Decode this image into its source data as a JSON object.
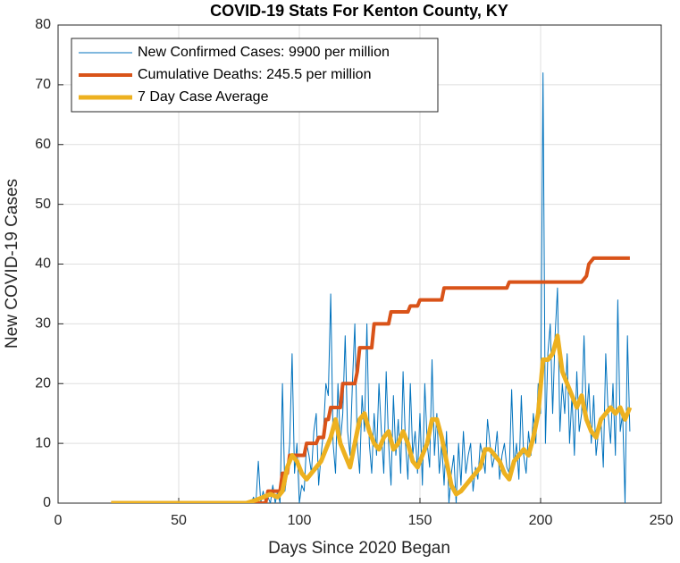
{
  "chart_data": {
    "type": "line",
    "title": "COVID-19 Stats For Kenton County, KY",
    "x_label": "Days Since 2020 Began",
    "y_label": "New COVID-19 Cases",
    "xlim": [
      0,
      250
    ],
    "xticks": [
      0,
      50,
      100,
      150,
      200,
      250
    ],
    "ylim": [
      0,
      80
    ],
    "yticks": [
      0,
      10,
      20,
      30,
      40,
      50,
      60,
      70,
      80
    ],
    "grid": true,
    "legend": "upper left",
    "series": [
      {
        "name": "New Confirmed Cases: 9900 per million",
        "color": "#0072bd",
        "width": 1,
        "x": [
          22,
          78,
          79,
          80,
          81,
          82,
          83,
          84,
          85,
          86,
          87,
          88,
          89,
          90,
          91,
          92,
          93,
          94,
          95,
          96,
          97,
          98,
          99,
          100,
          101,
          102,
          103,
          104,
          105,
          106,
          107,
          108,
          109,
          110,
          111,
          112,
          113,
          114,
          115,
          116,
          117,
          118,
          119,
          120,
          121,
          122,
          123,
          124,
          125,
          126,
          127,
          128,
          129,
          130,
          131,
          132,
          133,
          134,
          135,
          136,
          137,
          138,
          139,
          140,
          141,
          142,
          143,
          144,
          145,
          146,
          147,
          148,
          149,
          150,
          151,
          152,
          153,
          154,
          155,
          156,
          157,
          158,
          159,
          160,
          161,
          162,
          163,
          164,
          165,
          166,
          167,
          168,
          169,
          170,
          171,
          172,
          173,
          174,
          175,
          176,
          177,
          178,
          179,
          180,
          181,
          182,
          183,
          184,
          185,
          186,
          187,
          188,
          189,
          190,
          191,
          192,
          193,
          194,
          195,
          196,
          197,
          198,
          199,
          200,
          201,
          202,
          203,
          204,
          205,
          206,
          207,
          208,
          209,
          210,
          211,
          212,
          213,
          214,
          215,
          216,
          217,
          218,
          219,
          220,
          221,
          222,
          223,
          224,
          225,
          226,
          227,
          228,
          229,
          230,
          231,
          232,
          233,
          234,
          235,
          236,
          237
        ],
        "values": [
          0,
          0,
          0,
          0,
          1,
          0,
          7,
          0,
          2,
          0,
          1,
          0,
          3,
          0,
          2,
          0,
          20,
          2,
          5,
          10,
          25,
          5,
          10,
          0,
          3,
          2,
          10,
          8,
          5,
          12,
          15,
          3,
          8,
          12,
          20,
          18,
          35,
          10,
          5,
          20,
          10,
          15,
          28,
          12,
          8,
          20,
          30,
          10,
          5,
          18,
          12,
          30,
          10,
          5,
          15,
          8,
          20,
          12,
          5,
          22,
          10,
          3,
          18,
          8,
          14,
          5,
          22,
          10,
          4,
          20,
          8,
          12,
          5,
          15,
          3,
          20,
          10,
          6,
          24,
          8,
          15,
          5,
          10,
          3,
          12,
          0,
          5,
          8,
          0,
          10,
          3,
          12,
          5,
          8,
          10,
          2,
          6,
          4,
          10,
          8,
          5,
          14,
          10,
          6,
          8,
          12,
          4,
          8,
          10,
          6,
          5,
          19,
          6,
          10,
          4,
          18,
          8,
          5,
          12,
          8,
          15,
          10,
          20,
          15,
          72,
          10,
          25,
          30,
          15,
          28,
          36,
          12,
          20,
          15,
          25,
          10,
          18,
          8,
          22,
          12,
          15,
          28,
          14,
          20,
          10,
          18,
          8,
          12,
          14,
          6,
          25,
          15,
          10,
          20,
          8,
          34,
          12,
          15,
          0,
          28,
          12
        ]
      },
      {
        "name": "Cumulative Deaths: 245.5 per million",
        "color": "#d95319",
        "width": 4,
        "x": [
          22,
          86,
          87,
          92,
          93,
          95,
          96,
          102,
          103,
          107,
          108,
          110,
          111,
          112,
          113,
          117,
          118,
          123,
          124,
          125,
          130,
          131,
          137,
          138,
          145,
          146,
          149,
          150,
          159,
          160,
          186,
          187,
          217,
          219,
          220,
          222,
          237
        ],
        "values": [
          0,
          0,
          2,
          2,
          5,
          5,
          8,
          8,
          10,
          10,
          11,
          11,
          14,
          14,
          16,
          16,
          20,
          20,
          22,
          26,
          26,
          30,
          30,
          32,
          32,
          33,
          33,
          34,
          34,
          36,
          36,
          37,
          37,
          38,
          40,
          41,
          41
        ]
      },
      {
        "name": "7 Day Case Average",
        "color": "#edb120",
        "width": 5,
        "x": [
          22,
          78,
          82,
          85,
          88,
          91,
          93,
          95,
          97,
          99,
          101,
          103,
          105,
          107,
          109,
          111,
          113,
          115,
          117,
          119,
          121,
          123,
          125,
          127,
          129,
          131,
          133,
          135,
          137,
          139,
          141,
          143,
          145,
          147,
          149,
          151,
          153,
          155,
          157,
          159,
          161,
          163,
          165,
          167,
          169,
          171,
          173,
          175,
          177,
          179,
          181,
          183,
          185,
          187,
          189,
          191,
          193,
          195,
          197,
          199,
          201,
          203,
          205,
          207,
          209,
          211,
          213,
          215,
          217,
          219,
          221,
          223,
          225,
          227,
          229,
          231,
          233,
          235,
          237
        ],
        "values": [
          0,
          0,
          0.5,
          1,
          1.5,
          1,
          2,
          6,
          8,
          7,
          5,
          4,
          5,
          6,
          7,
          9,
          11,
          14,
          10,
          8,
          6,
          10,
          14,
          15,
          12,
          10,
          9,
          11,
          12,
          9,
          10,
          12,
          10,
          7,
          6,
          8,
          10,
          14,
          14,
          11,
          7,
          3,
          1.5,
          2,
          3,
          4,
          5,
          6,
          9,
          9,
          8,
          7,
          5,
          4,
          7,
          8,
          9,
          8,
          11,
          15,
          24,
          24,
          25,
          28,
          22,
          20,
          18,
          16,
          18,
          14,
          12,
          11,
          14,
          15,
          16,
          15,
          16,
          14,
          16
        ]
      }
    ]
  }
}
